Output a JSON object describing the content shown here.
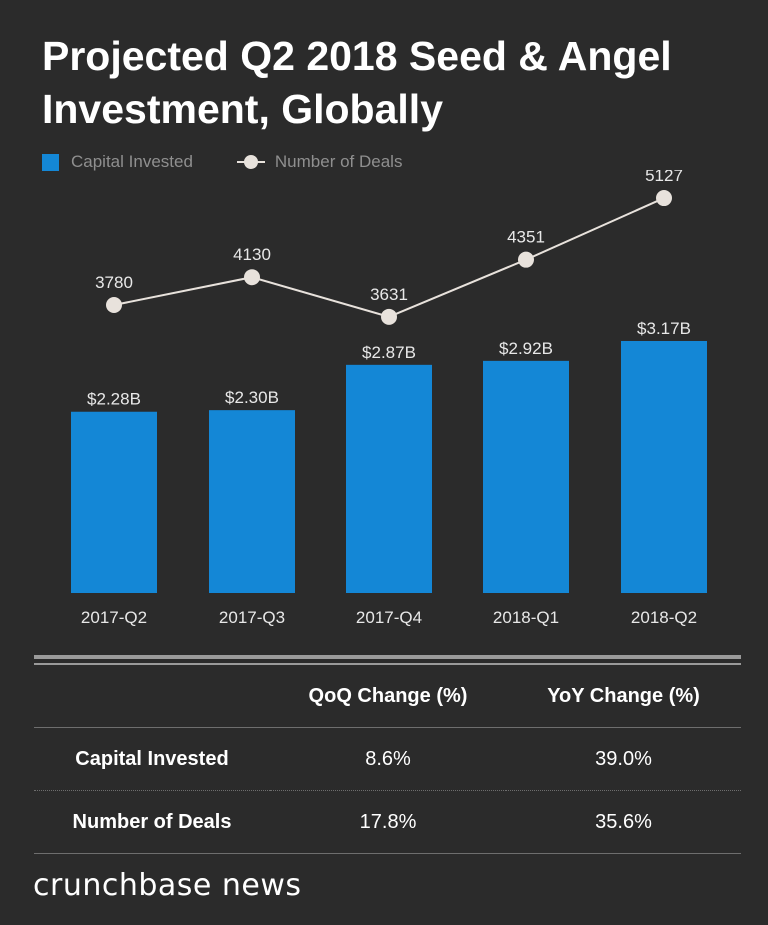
{
  "title_line1": "Projected Q2 2018 Seed & Angel",
  "title_line2": "Investment, Globally",
  "colors": {
    "bar": "#1487d6",
    "line": "#e8e2dc",
    "background": "#2b2b2b"
  },
  "legend": {
    "bar_label": "Capital Invested",
    "line_label": "Number of Deals"
  },
  "chart_data": {
    "type": "bar",
    "categories": [
      "2017-Q2",
      "2017-Q3",
      "2017-Q4",
      "2018-Q1",
      "2018-Q2"
    ],
    "series": [
      {
        "name": "Capital Invested",
        "type": "bar",
        "values": [
          2.28,
          2.3,
          2.87,
          2.92,
          3.17
        ],
        "labels": [
          "$2.28B",
          "$2.30B",
          "$2.87B",
          "$2.92B",
          "$3.17B"
        ]
      },
      {
        "name": "Number of Deals",
        "type": "line",
        "values": [
          3780,
          4130,
          3631,
          4351,
          5127
        ],
        "labels": [
          "3780",
          "4130",
          "3631",
          "4351",
          "5127"
        ]
      }
    ],
    "legend_position": "top-left",
    "grid": false
  },
  "table": {
    "headers": [
      "",
      "QoQ Change (%)",
      "YoY Change (%)"
    ],
    "rows": [
      {
        "label": "Capital Invested",
        "qoq": "8.6%",
        "yoy": "39.0%"
      },
      {
        "label": "Number of Deals",
        "qoq": "17.8%",
        "yoy": "35.6%"
      }
    ]
  },
  "logo_text": "crunchbase news"
}
